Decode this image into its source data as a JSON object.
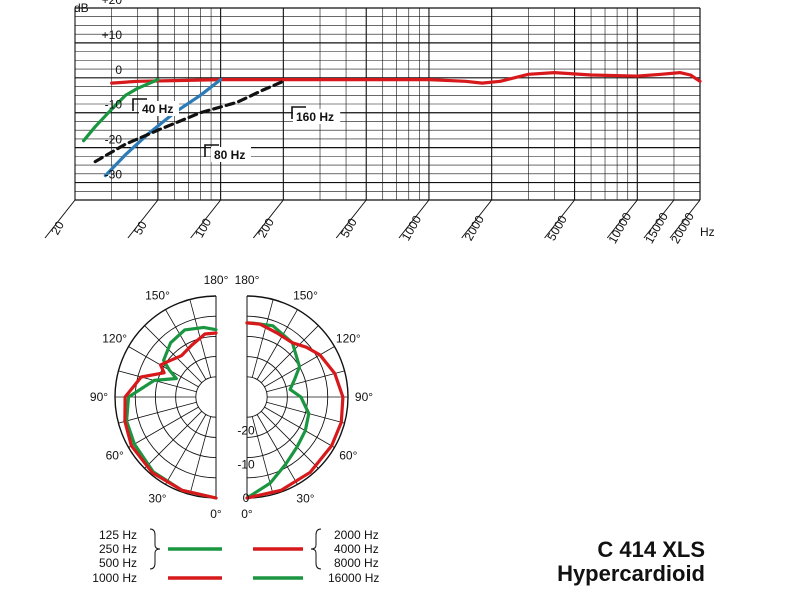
{
  "model": {
    "name": "C 414 XLS",
    "pattern": "Hypercardioid"
  },
  "colors": {
    "red": "#d7191c",
    "green": "#1a9641",
    "blue": "#2c7bb6",
    "black": "#111111"
  },
  "chart_data": [
    {
      "type": "line",
      "ylabel": "dB",
      "xunit": "Hz",
      "ylim": [
        -35,
        20
      ],
      "xlim": [
        20,
        20000
      ],
      "xscale": "log",
      "grid": true,
      "yticks": [
        {
          "v": 20,
          "label": "+20"
        },
        {
          "v": 10,
          "label": "+10"
        },
        {
          "v": 0,
          "label": "0"
        },
        {
          "v": -10,
          "label": "-10"
        },
        {
          "v": -20,
          "label": "-20"
        },
        {
          "v": -30,
          "label": "-30"
        }
      ],
      "xticks": [
        {
          "v": 20,
          "label": "20"
        },
        {
          "v": 50,
          "label": "50"
        },
        {
          "v": 100,
          "label": "100"
        },
        {
          "v": 200,
          "label": "200"
        },
        {
          "v": 500,
          "label": "500"
        },
        {
          "v": 1000,
          "label": "1000"
        },
        {
          "v": 2000,
          "label": "2000"
        },
        {
          "v": 5000,
          "label": "5000"
        },
        {
          "v": 10000,
          "label": "10000"
        },
        {
          "v": 15000,
          "label": "15000"
        },
        {
          "v": 20000,
          "label": "20000"
        }
      ],
      "series": [
        {
          "color": "red",
          "style": "solid",
          "x": [
            30,
            40,
            60,
            100,
            200,
            500,
            1000,
            1500,
            1800,
            2200,
            3000,
            4000,
            6000,
            10000,
            13000,
            16000,
            18000,
            20000
          ],
          "y": [
            -1.5,
            -1,
            -0.8,
            -0.5,
            -0.5,
            -0.5,
            -0.5,
            -1,
            -1.5,
            -1,
            1,
            1.5,
            0.8,
            0.5,
            1,
            1.5,
            0.8,
            -1
          ]
        },
        {
          "color": "green",
          "style": "solid",
          "x": [
            22,
            25,
            30,
            35,
            40,
            50
          ],
          "y": [
            -18,
            -14,
            -9,
            -5,
            -3,
            -0.5
          ]
        },
        {
          "color": "blue",
          "style": "solid",
          "x": [
            28,
            35,
            45,
            60,
            80,
            100
          ],
          "y": [
            -28,
            -22,
            -16,
            -10,
            -5,
            -0.5
          ]
        },
        {
          "color": "black",
          "style": "dashed",
          "x": [
            25,
            35,
            50,
            80,
            120,
            160,
            200
          ],
          "y": [
            -24,
            -19,
            -15,
            -10,
            -7,
            -3.5,
            -1
          ]
        }
      ],
      "annotations": [
        {
          "text": "40 Hz",
          "x": 40,
          "y": -6
        },
        {
          "text": "80 Hz",
          "x": 80,
          "y": -18
        },
        {
          "text": "160 Hz",
          "x": 160,
          "y": -8
        }
      ]
    },
    {
      "type": "polar",
      "ring_labels": [
        {
          "db": -20,
          "label": "-20"
        },
        {
          "db": -10,
          "label": "-10"
        },
        {
          "db": 0,
          "label": "0"
        }
      ],
      "angle_labels": [
        "0°",
        "30°",
        "60°",
        "90°",
        "120°",
        "150°",
        "180°"
      ],
      "range_db": [
        -30,
        0
      ],
      "left_half": [
        {
          "color": "green",
          "legend": "left.group1",
          "angles": [
            0,
            20,
            40,
            60,
            75,
            90,
            105,
            115,
            120,
            125,
            140,
            155,
            170,
            180
          ],
          "db": [
            0,
            -0.5,
            -1,
            -2,
            -2.5,
            -4,
            -11,
            -17,
            -14,
            -11,
            -9,
            -8,
            -9,
            -10
          ]
        },
        {
          "color": "red",
          "legend": "left.group2",
          "angles": [
            0,
            20,
            40,
            60,
            75,
            90,
            105,
            115,
            120,
            125,
            140,
            155,
            170,
            180
          ],
          "db": [
            0,
            -0.5,
            -0.6,
            -1,
            -2,
            -3,
            -7,
            -13,
            -11,
            -12,
            -14,
            -13,
            -11,
            -11
          ]
        }
      ],
      "right_half": [
        {
          "color": "green",
          "legend": "right.group1",
          "angles": [
            0,
            15,
            30,
            45,
            60,
            75,
            90,
            100,
            110,
            120,
            140,
            160,
            175,
            180
          ],
          "db": [
            0,
            -3.5,
            -7,
            -9,
            -10,
            -11,
            -14,
            -17,
            -15,
            -12,
            -9,
            -7.5,
            -8,
            -8
          ]
        },
        {
          "color": "red",
          "legend": "right.group2",
          "angles": [
            0,
            20,
            40,
            60,
            75,
            90,
            105,
            120,
            130,
            140,
            155,
            170,
            180
          ],
          "db": [
            0,
            -0.5,
            -0.8,
            -1,
            -1,
            -1.5,
            -3,
            -5,
            -7,
            -9,
            -9,
            -8,
            -8
          ]
        }
      ]
    }
  ],
  "legend": {
    "left": {
      "group1_freqs": [
        "125 Hz",
        "250 Hz",
        "500 Hz"
      ],
      "group2_freqs": [
        "1000 Hz"
      ]
    },
    "right": {
      "group1_freqs": [
        "2000 Hz",
        "4000 Hz",
        "8000 Hz"
      ],
      "group2_freqs": [
        "16000 Hz"
      ]
    }
  }
}
